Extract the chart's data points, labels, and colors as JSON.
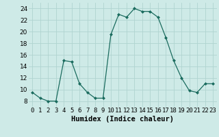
{
  "x": [
    0,
    1,
    2,
    3,
    4,
    5,
    6,
    7,
    8,
    9,
    10,
    11,
    12,
    13,
    14,
    15,
    16,
    17,
    18,
    19,
    20,
    21,
    22,
    23
  ],
  "y": [
    9.5,
    8.5,
    8,
    8,
    15,
    14.8,
    11,
    9.5,
    8.5,
    8.5,
    19.5,
    23,
    22.5,
    24,
    23.5,
    23.5,
    22.5,
    19,
    15,
    12,
    9.8,
    9.5,
    11,
    11
  ],
  "line_color": "#1a6b5e",
  "marker": "D",
  "marker_size": 2.0,
  "bg_color": "#ceeae7",
  "grid_color": "#b0d4d0",
  "xlabel": "Humidex (Indice chaleur)",
  "xlim": [
    -0.5,
    23.5
  ],
  "ylim": [
    7,
    25
  ],
  "yticks": [
    8,
    10,
    12,
    14,
    16,
    18,
    20,
    22,
    24
  ],
  "xticks": [
    0,
    1,
    2,
    3,
    4,
    5,
    6,
    7,
    8,
    9,
    10,
    11,
    12,
    13,
    14,
    15,
    16,
    17,
    18,
    19,
    20,
    21,
    22,
    23
  ],
  "xtick_labels": [
    "0",
    "1",
    "2",
    "3",
    "4",
    "5",
    "6",
    "7",
    "8",
    "9",
    "10",
    "11",
    "12",
    "13",
    "14",
    "15",
    "16",
    "17",
    "18",
    "19",
    "20",
    "21",
    "22",
    "23"
  ],
  "label_fontsize": 7.5,
  "tick_fontsize": 6.5
}
